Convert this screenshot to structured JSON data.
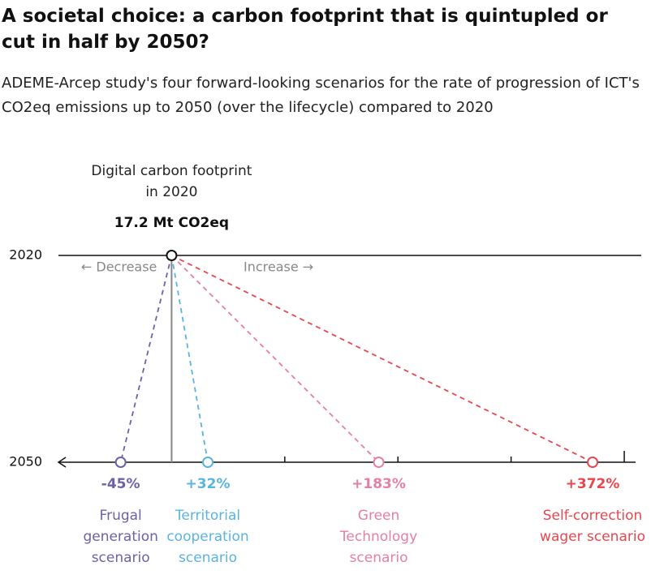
{
  "chart_data": {
    "type": "slope",
    "title": "A societal choice: a carbon footprint that is quintupled or cut in half by 2050?",
    "subtitle": "ADEME-Arcep study's four forward-looking scenarios for the rate of progression of ICT's CO2eq emissions up to 2050 (over the lifecycle) compared to 2020",
    "origin_label": "Digital carbon footprint in 2020",
    "origin_value_label": "17.2 Mt CO2eq",
    "rows": [
      "2020",
      "2050"
    ],
    "direction_labels": [
      "← Decrease",
      "Increase →"
    ],
    "categories": [
      "Frugal generation scenario",
      "Territorial cooperation scenario",
      "Green Technology scenario",
      "Self-correction wager scenario"
    ],
    "values": [
      -45,
      32,
      183,
      372
    ],
    "value_labels": [
      "-45%",
      "+32%",
      "+183%",
      "+372%"
    ],
    "colors": [
      "#6b62a8",
      "#5ab4e0",
      "#e57fa6",
      "#e8474d"
    ],
    "xlim": [
      -100,
      410
    ],
    "xticks": [
      100,
      200,
      300,
      400
    ]
  }
}
